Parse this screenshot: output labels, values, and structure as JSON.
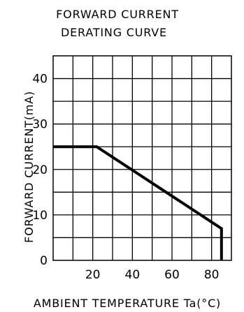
{
  "chart_data": {
    "type": "line",
    "title": [
      "FORWARD CURRENT",
      "DERATING CURVE"
    ],
    "xlabel": "AMBIENT TEMPERATURE Ta(°C)",
    "ylabel": "FORWARD CURRENT(mA)",
    "xlim": [
      0,
      90
    ],
    "ylim": [
      0,
      45
    ],
    "grid": true,
    "x_ticks": [
      20,
      40,
      60,
      80
    ],
    "y_ticks": [
      0,
      10,
      20,
      30,
      40
    ],
    "series": [
      {
        "x": [
          0,
          22,
          85,
          85
        ],
        "y": [
          25,
          25,
          7,
          0
        ]
      }
    ],
    "colors": {
      "line": "#000000",
      "grid": "#000000",
      "background": "#ffffff"
    }
  }
}
